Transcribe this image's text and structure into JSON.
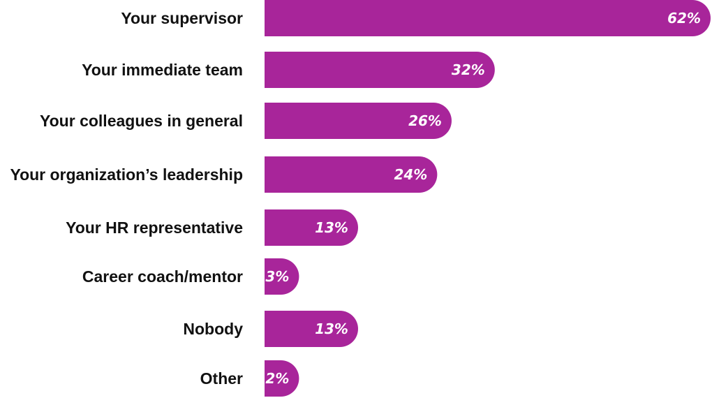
{
  "chart_data": {
    "type": "bar",
    "orientation": "horizontal",
    "title": "",
    "xlabel": "",
    "ylabel": "",
    "categories": [
      "Your supervisor",
      "Your immediate team",
      "Your colleagues in general",
      "Your organization’s leadership",
      "Your HR representative",
      "Career coach/mentor",
      "Nobody",
      "Other"
    ],
    "values": [
      62,
      32,
      26,
      24,
      13,
      3,
      13,
      2
    ],
    "value_labels": [
      "62%",
      "32%",
      "26%",
      "24%",
      "13%",
      "3%",
      "13%",
      "2%"
    ],
    "unit": "%",
    "xlim": [
      0,
      62
    ],
    "grid": false,
    "legend": "none",
    "bar_color": "#a8259a",
    "label_color": "#111111",
    "value_label_color": "#ffffff"
  }
}
